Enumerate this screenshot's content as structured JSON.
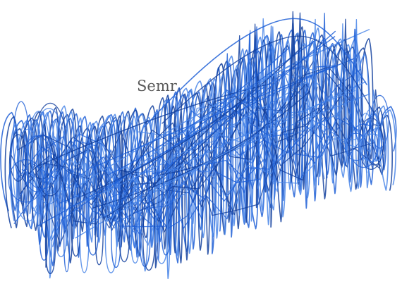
{
  "printed_word": "Semr",
  "ink_color": "#1f5fd6",
  "ink_color_dark": "#123f9e",
  "ink_color_light": "#4a86e8"
}
